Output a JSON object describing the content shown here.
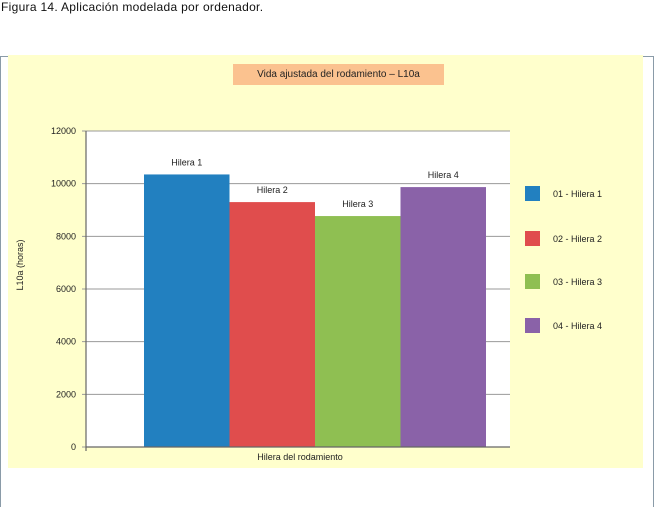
{
  "caption": "Figura 14. Aplicación modelada por ordenador.",
  "chart_data": {
    "type": "bar",
    "title": "Vida ajustada del rodamiento – L10a",
    "xlabel": "Hilera del rodamiento",
    "ylabel": "L10a (horas)",
    "ylim": [
      0,
      12000
    ],
    "yticks": [
      0,
      2000,
      4000,
      6000,
      8000,
      10000,
      12000
    ],
    "grid": true,
    "legend_placement": "right",
    "categories": [
      "Hilera 1",
      "Hilera 2",
      "Hilera 3",
      "Hilera 4"
    ],
    "values": [
      10350,
      9300,
      8770,
      9870
    ],
    "colors": [
      "#2280c0",
      "#e04d4d",
      "#8fbf52",
      "#8a62a8"
    ],
    "legend": [
      "01 - Hilera 1",
      "02 - Hilera 2",
      "03 - Hilera 3",
      "04 - Hilera 4"
    ]
  }
}
